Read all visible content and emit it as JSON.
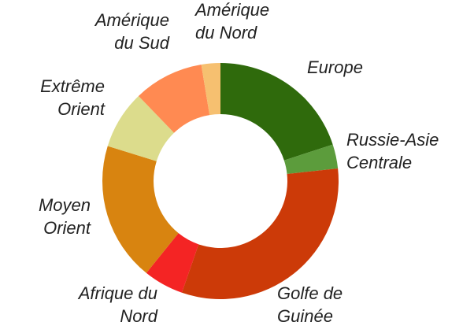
{
  "chart_data": {
    "type": "donut",
    "categories": [
      [
        "Europe"
      ],
      [
        "Russie-Asie",
        "Centrale"
      ],
      [
        "Golfe de",
        "Guinée"
      ],
      [
        "Afrique du",
        "Nord"
      ],
      [
        "Moyen",
        "Orient"
      ],
      [
        "Extrême",
        "Orient"
      ],
      [
        "Amérique",
        "du Sud"
      ],
      [
        "Amérique",
        "du Nord"
      ]
    ],
    "values": [
      20,
      3.3,
      32,
      5.5,
      19,
      8,
      9.6,
      2.6
    ],
    "colors": [
      "#2f6a0c",
      "#5c9c3c",
      "#cc3a08",
      "#f42424",
      "#d88410",
      "#dcdc8c",
      "#ff8a52",
      "#f6c070"
    ]
  }
}
